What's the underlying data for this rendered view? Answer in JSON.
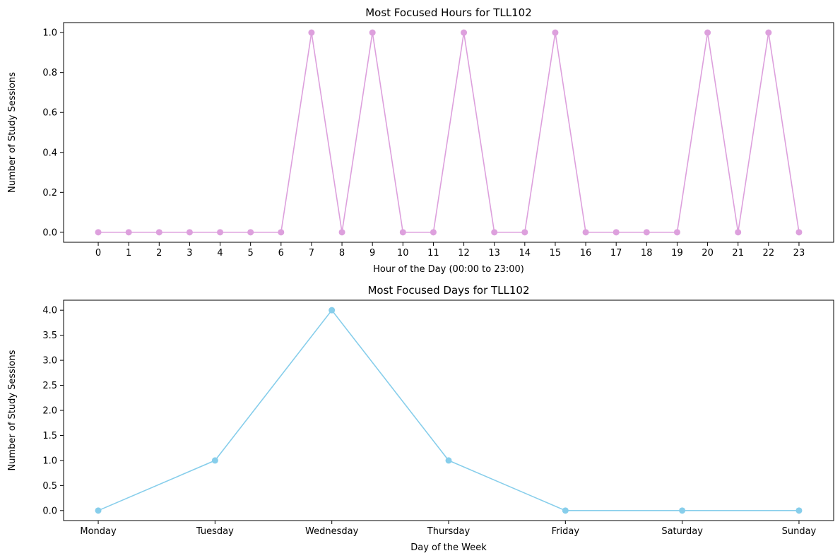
{
  "chart_data": [
    {
      "type": "line",
      "title": "Most Focused Hours for TLL102",
      "xlabel": "Hour of the Day (00:00 to 23:00)",
      "ylabel": "Number of Study Sessions",
      "color": "#DDA0DD",
      "x": [
        0,
        1,
        2,
        3,
        4,
        5,
        6,
        7,
        8,
        9,
        10,
        11,
        12,
        13,
        14,
        15,
        16,
        17,
        18,
        19,
        20,
        21,
        22,
        23
      ],
      "x_tick_labels": [
        "0",
        "1",
        "2",
        "3",
        "4",
        "5",
        "6",
        "7",
        "8",
        "9",
        "10",
        "11",
        "12",
        "13",
        "14",
        "15",
        "16",
        "17",
        "18",
        "19",
        "20",
        "21",
        "22",
        "23"
      ],
      "y": [
        0,
        0,
        0,
        0,
        0,
        0,
        0,
        1,
        0,
        1,
        0,
        0,
        1,
        0,
        0,
        1,
        0,
        0,
        0,
        0,
        1,
        0,
        1,
        0
      ],
      "ylim": [
        -0.05,
        1.05
      ],
      "y_ticks": [
        0.0,
        0.2,
        0.4,
        0.6,
        0.8,
        1.0
      ],
      "y_tick_labels": [
        "0.0",
        "0.2",
        "0.4",
        "0.6",
        "0.8",
        "1.0"
      ],
      "grid": false,
      "marker": "circle"
    },
    {
      "type": "line",
      "title": "Most Focused Days for TLL102",
      "xlabel": "Day of the Week",
      "ylabel": "Number of Study Sessions",
      "color": "#87CEEB",
      "categories": [
        "Monday",
        "Tuesday",
        "Wednesday",
        "Thursday",
        "Friday",
        "Saturday",
        "Sunday"
      ],
      "y": [
        0,
        1,
        4,
        1,
        0,
        0,
        0
      ],
      "ylim": [
        -0.2,
        4.2
      ],
      "y_ticks": [
        0.0,
        0.5,
        1.0,
        1.5,
        2.0,
        2.5,
        3.0,
        3.5,
        4.0
      ],
      "y_tick_labels": [
        "0.0",
        "0.5",
        "1.0",
        "1.5",
        "2.0",
        "2.5",
        "3.0",
        "3.5",
        "4.0"
      ],
      "grid": false,
      "marker": "circle"
    }
  ]
}
